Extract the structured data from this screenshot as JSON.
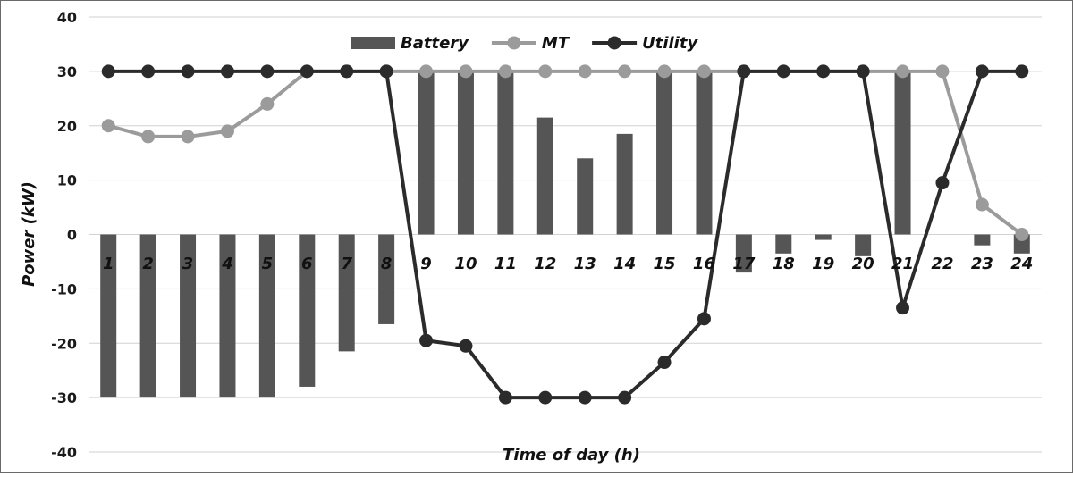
{
  "chart_data": {
    "type": "bar",
    "title": "",
    "xlabel": "Time of day (h)",
    "ylabel": "Power (kW)",
    "ylim": [
      -40,
      40
    ],
    "yticks": [
      40,
      30,
      20,
      10,
      0,
      -10,
      -20,
      -30,
      -40
    ],
    "categories": [
      "1",
      "2",
      "3",
      "4",
      "5",
      "6",
      "7",
      "8",
      "9",
      "10",
      "11",
      "12",
      "13",
      "14",
      "15",
      "16",
      "17",
      "18",
      "19",
      "20",
      "21",
      "22",
      "23",
      "24"
    ],
    "grid": true,
    "legend_position": "top-center",
    "series": [
      {
        "name": "Battery",
        "kind": "bar",
        "color": "#555555",
        "values": [
          -30,
          -30,
          -30,
          -30,
          -30,
          -28,
          -21.5,
          -16.5,
          30,
          30,
          30,
          21.5,
          14,
          18.5,
          30,
          30,
          -7,
          -3.5,
          -1,
          -4,
          30,
          0,
          -2,
          -3.5
        ]
      },
      {
        "name": "MT",
        "kind": "line",
        "color": "#9b9b9b",
        "values": [
          20,
          18,
          18,
          19,
          24,
          30,
          30,
          30,
          30,
          30,
          30,
          30,
          30,
          30,
          30,
          30,
          30,
          30,
          30,
          30,
          30,
          30,
          5.5,
          0
        ]
      },
      {
        "name": "Utility",
        "kind": "line",
        "color": "#2b2b2b",
        "values": [
          30,
          30,
          30,
          30,
          30,
          30,
          30,
          30,
          -19.5,
          -20.5,
          -30,
          -30,
          -30,
          -30,
          -23.5,
          -15.5,
          30,
          30,
          30,
          30,
          -13.5,
          9.5,
          30,
          30
        ]
      }
    ]
  }
}
